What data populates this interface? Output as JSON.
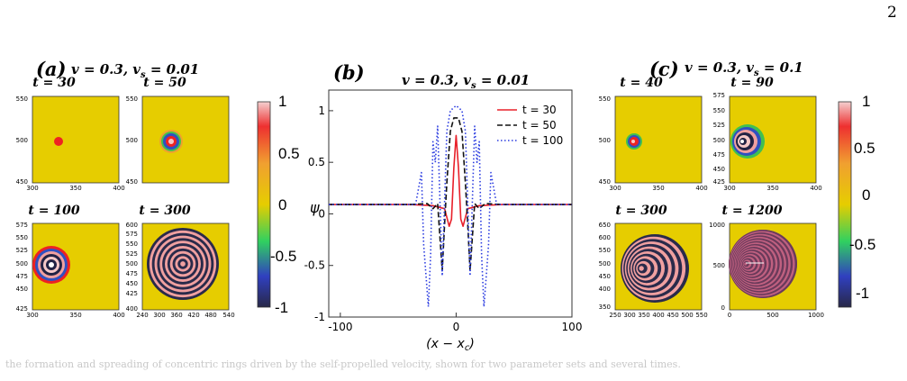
{
  "page_number": "2",
  "panel_a": {
    "label": "(a)",
    "params": "v = 0.3, v_s = 0.01",
    "subplots": [
      {
        "title": "t = 30",
        "x_ticks": [
          "300",
          "350",
          "400"
        ],
        "y_ticks": [
          "550",
          "500",
          "450"
        ],
        "rings": 1
      },
      {
        "title": "t = 50",
        "x_ticks": [],
        "y_ticks": [
          "550",
          "500",
          "450"
        ],
        "rings": 3
      },
      {
        "title": "t = 100",
        "x_ticks": [
          "300",
          "350",
          "400"
        ],
        "y_ticks": [
          "575",
          "550",
          "525",
          "500",
          "475",
          "450",
          "425"
        ],
        "rings": 5
      },
      {
        "title": "t = 300",
        "x_ticks": [
          "240",
          "300",
          "360",
          "420",
          "480",
          "540"
        ],
        "y_ticks": [
          "600",
          "575",
          "550",
          "525",
          "500",
          "475",
          "450",
          "425",
          "400"
        ],
        "rings": 14
      }
    ],
    "colorbar_ticks": [
      "1",
      "0.5",
      "0",
      "-0.5",
      "-1"
    ]
  },
  "panel_b": {
    "label": "(b)",
    "title": "v = 0.3, v_s = 0.01",
    "ylabel": "ψ",
    "xlabel": "(x − x_c)",
    "legend": [
      "t = 30",
      "t = 50",
      "t = 100"
    ]
  },
  "panel_c": {
    "label": "(c)",
    "params": "v = 0.3, v_s = 0.1",
    "subplots": [
      {
        "title": "t = 40",
        "x_ticks": [
          "300",
          "350",
          "400"
        ],
        "y_ticks": [
          "550",
          "500",
          "450"
        ]
      },
      {
        "title": "t = 90",
        "x_ticks": [
          "300",
          "350",
          "400"
        ],
        "y_ticks": [
          "575",
          "550",
          "525",
          "500",
          "475",
          "450",
          "425"
        ]
      },
      {
        "title": "t = 300",
        "x_ticks": [
          "250",
          "300",
          "350",
          "400",
          "450",
          "500",
          "550"
        ],
        "y_ticks": [
          "650",
          "600",
          "550",
          "500",
          "450",
          "400",
          "350"
        ]
      },
      {
        "title": "t = 1200",
        "x_ticks": [
          "0",
          "500",
          "1000"
        ],
        "y_ticks": [
          "1000",
          "500",
          "0"
        ]
      }
    ],
    "colorbar_ticks": [
      "1",
      "0.5",
      "0",
      "-0.5",
      "-1"
    ]
  },
  "chart_data": {
    "type": "line",
    "title": "v = 0.3, v_s = 0.01",
    "xlabel": "(x − x_c)",
    "ylabel": "ψ",
    "xlim": [
      -110,
      100
    ],
    "ylim": [
      -1,
      1.2
    ],
    "x_ticks": [
      -100,
      0,
      100
    ],
    "y_ticks": [
      1,
      0.5,
      0,
      -0.5,
      -1
    ],
    "legend_position": "top-right",
    "series": [
      {
        "name": "t = 30",
        "color": "#e8202a",
        "dash": "solid",
        "x": [
          -110,
          -40,
          -20,
          -10,
          -6,
          -4,
          -2,
          0,
          2,
          4,
          6,
          10,
          20,
          40,
          100
        ],
        "y": [
          0.09,
          0.09,
          0.08,
          0.05,
          -0.12,
          -0.05,
          0.45,
          0.76,
          0.45,
          -0.05,
          -0.12,
          0.05,
          0.08,
          0.09,
          0.09
        ]
      },
      {
        "name": "t = 50",
        "color": "#111111",
        "dash": "dash",
        "x": [
          -110,
          -40,
          -25,
          -20,
          -16,
          -12,
          -10,
          -8,
          -5,
          -2,
          0,
          2,
          5,
          8,
          10,
          12,
          16,
          20,
          25,
          40,
          100
        ],
        "y": [
          0.09,
          0.09,
          0.1,
          0.05,
          0.1,
          -0.55,
          -0.1,
          0.3,
          0.8,
          0.93,
          0.93,
          0.93,
          0.8,
          0.3,
          -0.1,
          -0.55,
          0.1,
          0.05,
          0.1,
          0.09,
          0.09
        ]
      },
      {
        "name": "t = 100",
        "color": "#2a3be0",
        "dash": "dot",
        "x": [
          -110,
          -35,
          -30,
          -28,
          -26,
          -24,
          -22,
          -20,
          -18,
          -16,
          -12,
          -8,
          -5,
          0,
          5,
          8,
          12,
          16,
          18,
          20,
          22,
          24,
          26,
          28,
          30,
          35,
          100
        ],
        "y": [
          0.09,
          0.09,
          0.4,
          -0.3,
          -0.6,
          -0.9,
          -0.4,
          0.7,
          0.5,
          0.85,
          -0.6,
          0.8,
          1.0,
          1.05,
          1.0,
          0.8,
          -0.6,
          0.85,
          0.5,
          0.7,
          -0.4,
          -0.9,
          -0.6,
          -0.3,
          0.4,
          0.09,
          0.09
        ]
      }
    ]
  },
  "caption_fragment": "the formation and spreading of concentric rings driven by the self-propelled velocity, shown for two parameter sets and several times."
}
